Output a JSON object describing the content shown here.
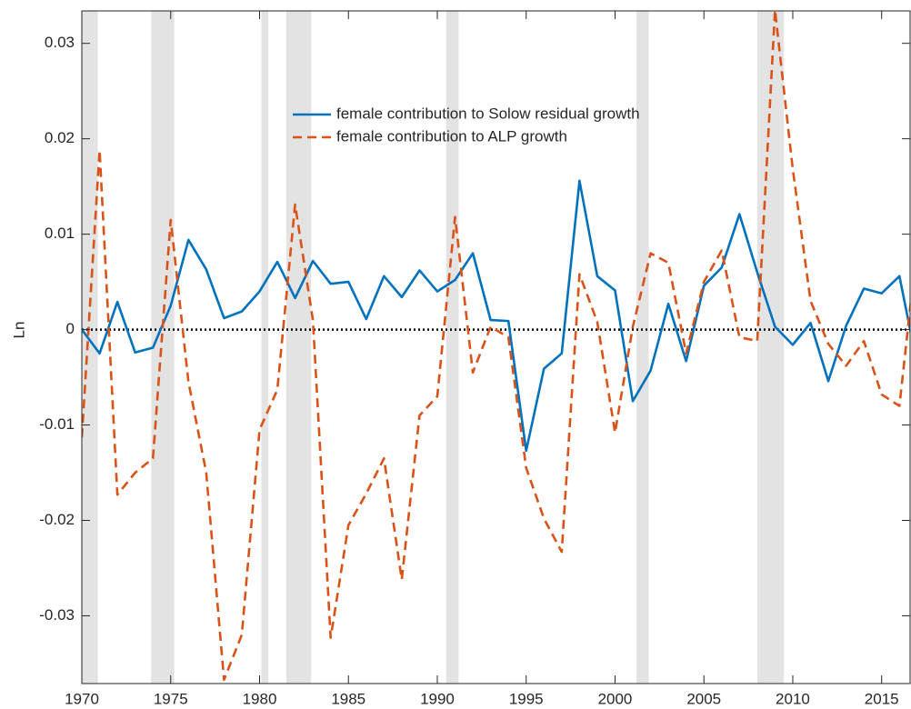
{
  "chart_data": {
    "type": "line",
    "y_label": "Ln",
    "x": [
      1970,
      1971,
      1972,
      1973,
      1974,
      1975,
      1976,
      1977,
      1978,
      1979,
      1980,
      1981,
      1982,
      1983,
      1984,
      1985,
      1986,
      1987,
      1988,
      1989,
      1990,
      1991,
      1992,
      1993,
      1994,
      1995,
      1996,
      1997,
      1998,
      1999,
      2000,
      2001,
      2002,
      2003,
      2004,
      2005,
      2006,
      2007,
      2008,
      2009,
      2010,
      2011,
      2012,
      2013,
      2014,
      2015,
      2016,
      2017
    ],
    "series": [
      {
        "name": "female contribution to Solow residual growth",
        "color": "#0072bd",
        "dashed": false,
        "values": [
          0,
          -0.0025,
          0.0029,
          -0.0024,
          -0.0019,
          0.0025,
          0.0094,
          0.0063,
          0.0012,
          0.0019,
          0.004,
          0.0071,
          0.0033,
          0.0072,
          0.0048,
          0.005,
          0.0011,
          0.0056,
          0.0034,
          0.0062,
          0.004,
          0.0052,
          0.008,
          0.001,
          0.0009,
          -0.0127,
          -0.0041,
          -0.0025,
          0.0156,
          0.0056,
          0.0041,
          -0.0075,
          -0.0043,
          0.0027,
          -0.0033,
          0.0046,
          0.0065,
          0.0121,
          0.006,
          0.0003,
          -0.0016,
          0.0007,
          -0.0054,
          0.0004,
          0.0043,
          0.0038,
          0.0056,
          -0.0037
        ]
      },
      {
        "name": "female contribution to ALP growth",
        "color": "#d95319",
        "dashed": true,
        "values": [
          -0.0113,
          0.0188,
          -0.0173,
          -0.015,
          -0.0135,
          0.0115,
          -0.0055,
          -0.015,
          -0.0367,
          -0.032,
          -0.0105,
          -0.0063,
          0.0131,
          0.001,
          -0.0323,
          -0.0205,
          -0.0172,
          -0.0135,
          -0.0262,
          -0.009,
          -0.007,
          0.0118,
          -0.0045,
          0.0003,
          -0.0008,
          -0.0145,
          -0.0198,
          -0.0233,
          0.0058,
          0.0008,
          -0.0108,
          0.0003,
          0.008,
          0.007,
          -0.0025,
          0.005,
          0.0083,
          -0.0008,
          -0.0012,
          0.0335,
          0.0168,
          0.003,
          -0.0015,
          -0.0038,
          -0.0012,
          -0.0068,
          -0.008,
          0.009
        ]
      }
    ],
    "shaded_periods": [
      [
        1970,
        1970.9
      ],
      [
        1973.9,
        1975.2
      ],
      [
        1980.1,
        1980.5
      ],
      [
        1981.5,
        1982.9
      ],
      [
        1990.5,
        1991.2
      ],
      [
        2001.2,
        2001.9
      ],
      [
        2008,
        2009.5
      ]
    ],
    "shade_color": "#e3e3e3",
    "reference_line": 0,
    "xlim": [
      1970,
      2016.6
    ],
    "ylim": [
      -0.0371,
      0.0334
    ],
    "xticks": [
      1970,
      1975,
      1980,
      1985,
      1990,
      1995,
      2000,
      2005,
      2010,
      2015
    ],
    "yticks": [
      -0.03,
      -0.02,
      -0.01,
      0,
      0.01,
      0.02,
      0.03
    ]
  }
}
